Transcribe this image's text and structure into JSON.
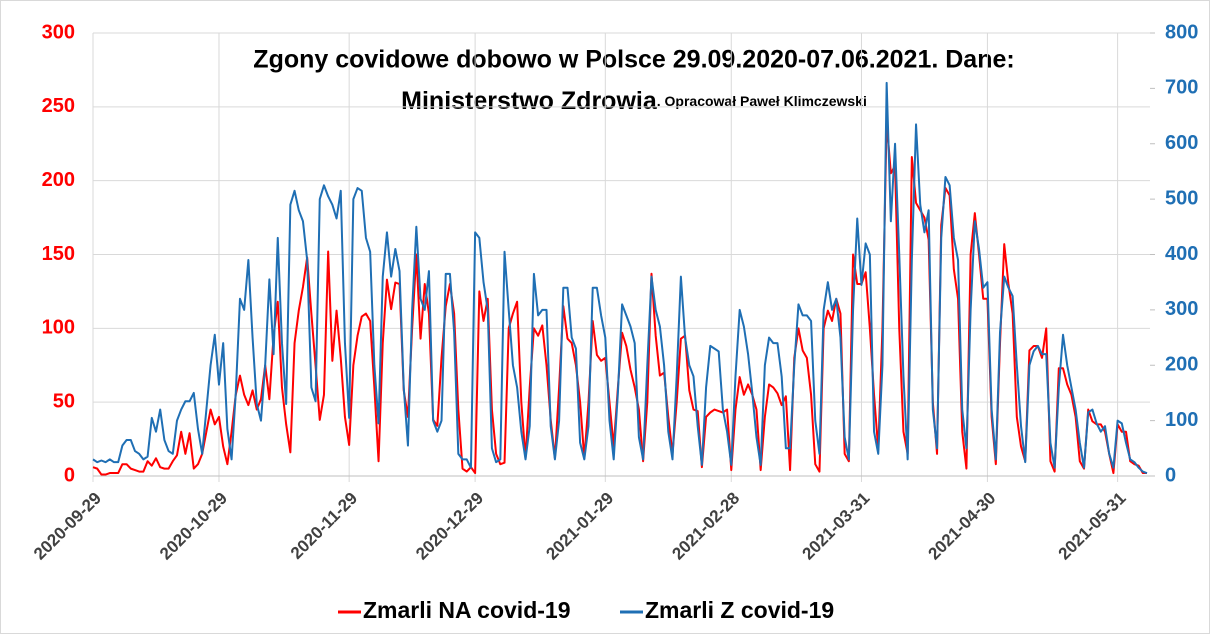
{
  "chart_data": {
    "type": "line",
    "title": [
      "Zgony covidowe dobowo w Polsce 29.09.2020-07.06.2021. Dane:",
      "Ministerstwo Zdrowia"
    ],
    "subtitle": ". Opracował Paweł Klimczewski",
    "x": [
      "2020-09-29",
      "2020-09-30",
      "2020-10-01",
      "2020-10-02",
      "2020-10-03",
      "2020-10-04",
      "2020-10-05",
      "2020-10-06",
      "2020-10-07",
      "2020-10-08",
      "2020-10-09",
      "2020-10-10",
      "2020-10-11",
      "2020-10-12",
      "2020-10-13",
      "2020-10-14",
      "2020-10-15",
      "2020-10-16",
      "2020-10-17",
      "2020-10-18",
      "2020-10-19",
      "2020-10-20",
      "2020-10-21",
      "2020-10-22",
      "2020-10-23",
      "2020-10-24",
      "2020-10-25",
      "2020-10-26",
      "2020-10-27",
      "2020-10-28",
      "2020-10-29",
      "2020-10-30",
      "2020-10-31",
      "2020-11-01",
      "2020-11-02",
      "2020-11-03",
      "2020-11-04",
      "2020-11-05",
      "2020-11-06",
      "2020-11-07",
      "2020-11-08",
      "2020-11-09",
      "2020-11-10",
      "2020-11-11",
      "2020-11-12",
      "2020-11-13",
      "2020-11-14",
      "2020-11-15",
      "2020-11-16",
      "2020-11-17",
      "2020-11-18",
      "2020-11-19",
      "2020-11-20",
      "2020-11-21",
      "2020-11-22",
      "2020-11-23",
      "2020-11-24",
      "2020-11-25",
      "2020-11-26",
      "2020-11-27",
      "2020-11-28",
      "2020-11-29",
      "2020-11-30",
      "2020-12-01",
      "2020-12-02",
      "2020-12-03",
      "2020-12-04",
      "2020-12-05",
      "2020-12-06",
      "2020-12-07",
      "2020-12-08",
      "2020-12-09",
      "2020-12-10",
      "2020-12-11",
      "2020-12-12",
      "2020-12-13",
      "2020-12-14",
      "2020-12-15",
      "2020-12-16",
      "2020-12-17",
      "2020-12-18",
      "2020-12-19",
      "2020-12-20",
      "2020-12-21",
      "2020-12-22",
      "2020-12-23",
      "2020-12-24",
      "2020-12-25",
      "2020-12-26",
      "2020-12-27",
      "2020-12-28",
      "2020-12-29",
      "2020-12-30",
      "2020-12-31",
      "2021-01-01",
      "2021-01-02",
      "2021-01-03",
      "2021-01-04",
      "2021-01-05",
      "2021-01-06",
      "2021-01-07",
      "2021-01-08",
      "2021-01-09",
      "2021-01-10",
      "2021-01-11",
      "2021-01-12",
      "2021-01-13",
      "2021-01-14",
      "2021-01-15",
      "2021-01-16",
      "2021-01-17",
      "2021-01-18",
      "2021-01-19",
      "2021-01-20",
      "2021-01-21",
      "2021-01-22",
      "2021-01-23",
      "2021-01-24",
      "2021-01-25",
      "2021-01-26",
      "2021-01-27",
      "2021-01-28",
      "2021-01-29",
      "2021-01-30",
      "2021-01-31",
      "2021-02-01",
      "2021-02-02",
      "2021-02-03",
      "2021-02-04",
      "2021-02-05",
      "2021-02-06",
      "2021-02-07",
      "2021-02-08",
      "2021-02-09",
      "2021-02-10",
      "2021-02-11",
      "2021-02-12",
      "2021-02-13",
      "2021-02-14",
      "2021-02-15",
      "2021-02-16",
      "2021-02-17",
      "2021-02-18",
      "2021-02-19",
      "2021-02-20",
      "2021-02-21",
      "2021-02-22",
      "2021-02-23",
      "2021-02-24",
      "2021-02-25",
      "2021-02-26",
      "2021-02-27",
      "2021-02-28",
      "2021-03-01",
      "2021-03-02",
      "2021-03-03",
      "2021-03-04",
      "2021-03-05",
      "2021-03-06",
      "2021-03-07",
      "2021-03-08",
      "2021-03-09",
      "2021-03-10",
      "2021-03-11",
      "2021-03-12",
      "2021-03-13",
      "2021-03-14",
      "2021-03-15",
      "2021-03-16",
      "2021-03-17",
      "2021-03-18",
      "2021-03-19",
      "2021-03-20",
      "2021-03-21",
      "2021-03-22",
      "2021-03-23",
      "2021-03-24",
      "2021-03-25",
      "2021-03-26",
      "2021-03-27",
      "2021-03-28",
      "2021-03-29",
      "2021-03-30",
      "2021-03-31",
      "2021-04-01",
      "2021-04-02",
      "2021-04-03",
      "2021-04-04",
      "2021-04-05",
      "2021-04-06",
      "2021-04-07",
      "2021-04-08",
      "2021-04-09",
      "2021-04-10",
      "2021-04-11",
      "2021-04-12",
      "2021-04-13",
      "2021-04-14",
      "2021-04-15",
      "2021-04-16",
      "2021-04-17",
      "2021-04-18",
      "2021-04-19",
      "2021-04-20",
      "2021-04-21",
      "2021-04-22",
      "2021-04-23",
      "2021-04-24",
      "2021-04-25",
      "2021-04-26",
      "2021-04-27",
      "2021-04-28",
      "2021-04-29",
      "2021-04-30",
      "2021-05-01",
      "2021-05-02",
      "2021-05-03",
      "2021-05-04",
      "2021-05-05",
      "2021-05-06",
      "2021-05-07",
      "2021-05-08",
      "2021-05-09",
      "2021-05-10",
      "2021-05-11",
      "2021-05-12",
      "2021-05-13",
      "2021-05-14",
      "2021-05-15",
      "2021-05-16",
      "2021-05-17",
      "2021-05-18",
      "2021-05-19",
      "2021-05-20",
      "2021-05-21",
      "2021-05-22",
      "2021-05-23",
      "2021-05-24",
      "2021-05-25",
      "2021-05-26",
      "2021-05-27",
      "2021-05-28",
      "2021-05-29",
      "2021-05-30",
      "2021-05-31",
      "2021-06-01",
      "2021-06-02",
      "2021-06-03",
      "2021-06-04",
      "2021-06-05",
      "2021-06-06",
      "2021-06-07"
    ],
    "series": [
      {
        "name": "Zmarli NA covid-19",
        "color": "#ff0000",
        "axis": "y",
        "values": [
          6,
          5,
          1,
          1,
          2,
          2,
          2,
          8,
          8,
          5,
          4,
          3,
          3,
          10,
          7,
          12,
          6,
          5,
          5,
          10,
          14,
          30,
          15,
          29,
          5,
          8,
          15,
          30,
          45,
          35,
          40,
          20,
          8,
          30,
          55,
          68,
          55,
          48,
          58,
          45,
          52,
          75,
          52,
          95,
          118,
          60,
          35,
          16,
          90,
          112,
          128,
          148,
          110,
          75,
          38,
          55,
          152,
          78,
          112,
          80,
          40,
          21,
          75,
          95,
          108,
          110,
          105,
          60,
          10,
          90,
          133,
          113,
          131,
          130,
          58,
          40,
          100,
          150,
          93,
          130,
          110,
          38,
          34,
          80,
          115,
          130,
          110,
          45,
          5,
          3,
          6,
          2,
          125,
          105,
          120,
          45,
          15,
          8,
          9,
          100,
          110,
          118,
          50,
          12,
          60,
          100,
          95,
          102,
          75,
          38,
          12,
          60,
          115,
          93,
          90,
          75,
          50,
          12,
          50,
          105,
          82,
          78,
          80,
          50,
          20,
          60,
          97,
          88,
          72,
          60,
          45,
          10,
          50,
          137,
          95,
          68,
          70,
          40,
          15,
          50,
          93,
          95,
          58,
          45,
          44,
          6,
          40,
          43,
          45,
          44,
          43,
          45,
          4,
          45,
          67,
          55,
          62,
          55,
          45,
          4,
          40,
          62,
          60,
          56,
          48,
          54,
          4,
          80,
          100,
          85,
          80,
          55,
          8,
          3,
          100,
          112,
          105,
          120,
          110,
          15,
          10,
          150,
          130,
          130,
          138,
          100,
          55,
          18,
          100,
          240,
          205,
          210,
          100,
          30,
          15,
          216,
          185,
          180,
          175,
          160,
          50,
          15,
          170,
          195,
          190,
          140,
          120,
          30,
          5,
          150,
          178,
          150,
          120,
          120,
          40,
          8,
          90,
          157,
          130,
          110,
          40,
          20,
          10,
          85,
          88,
          88,
          80,
          100,
          10,
          3,
          73,
          73,
          62,
          55,
          40,
          10,
          5,
          45,
          37,
          35,
          35,
          30,
          15,
          2,
          35,
          30,
          30,
          10,
          8,
          7,
          2,
          2
        ]
      },
      {
        "name": "Zmarli Z covid-19",
        "color": "#1f6fb4",
        "axis": "y2",
        "values": [
          30,
          25,
          28,
          25,
          30,
          25,
          25,
          55,
          65,
          65,
          45,
          40,
          30,
          35,
          105,
          80,
          120,
          65,
          45,
          40,
          100,
          120,
          135,
          135,
          150,
          85,
          40,
          120,
          200,
          255,
          165,
          240,
          85,
          30,
          150,
          320,
          300,
          390,
          250,
          130,
          100,
          200,
          355,
          220,
          430,
          240,
          130,
          490,
          515,
          480,
          460,
          390,
          160,
          135,
          500,
          525,
          505,
          490,
          465,
          515,
          240,
          105,
          500,
          520,
          515,
          430,
          405,
          200,
          95,
          360,
          440,
          360,
          410,
          370,
          160,
          55,
          300,
          450,
          320,
          300,
          370,
          100,
          80,
          100,
          365,
          365,
          260,
          40,
          30,
          30,
          15,
          440,
          430,
          350,
          300,
          50,
          25,
          30,
          405,
          300,
          200,
          160,
          80,
          30,
          90,
          365,
          290,
          300,
          300,
          90,
          30,
          100,
          340,
          340,
          250,
          230,
          60,
          30,
          90,
          340,
          340,
          290,
          250,
          100,
          30,
          150,
          310,
          290,
          270,
          240,
          70,
          30,
          200,
          360,
          300,
          270,
          200,
          80,
          30,
          180,
          360,
          250,
          200,
          180,
          90,
          20,
          160,
          235,
          230,
          225,
          120,
          80,
          20,
          180,
          300,
          270,
          220,
          150,
          70,
          20,
          200,
          250,
          240,
          240,
          180,
          50,
          50,
          200,
          310,
          290,
          290,
          280,
          100,
          40,
          300,
          350,
          300,
          320,
          250,
          70,
          30,
          300,
          465,
          345,
          420,
          400,
          80,
          40,
          200,
          710,
          460,
          600,
          400,
          180,
          30,
          390,
          635,
          490,
          440,
          480,
          120,
          50,
          430,
          540,
          525,
          430,
          390,
          120,
          50,
          300,
          460,
          410,
          340,
          350,
          120,
          30,
          260,
          360,
          340,
          325,
          200,
          90,
          25,
          200,
          225,
          235,
          220,
          220,
          60,
          15,
          160,
          255,
          200,
          160,
          120,
          60,
          15,
          115,
          120,
          95,
          80,
          90,
          40,
          15,
          100,
          95,
          60,
          30,
          25,
          15,
          8,
          5
        ]
      }
    ],
    "xlim": [
      "2020-09-29",
      "2021-06-07"
    ],
    "xticks": [
      "2020-09-29",
      "2020-10-29",
      "2020-11-29",
      "2020-12-29",
      "2021-01-29",
      "2021-02-28",
      "2021-03-31",
      "2021-04-30",
      "2021-05-31"
    ],
    "ylim": [
      0,
      300
    ],
    "yticks": [
      0,
      50,
      100,
      150,
      200,
      250,
      300
    ],
    "y2lim": [
      0,
      800
    ],
    "y2ticks": [
      0,
      100,
      200,
      300,
      400,
      500,
      600,
      700,
      800
    ],
    "grid": true,
    "legend": "bottom"
  }
}
